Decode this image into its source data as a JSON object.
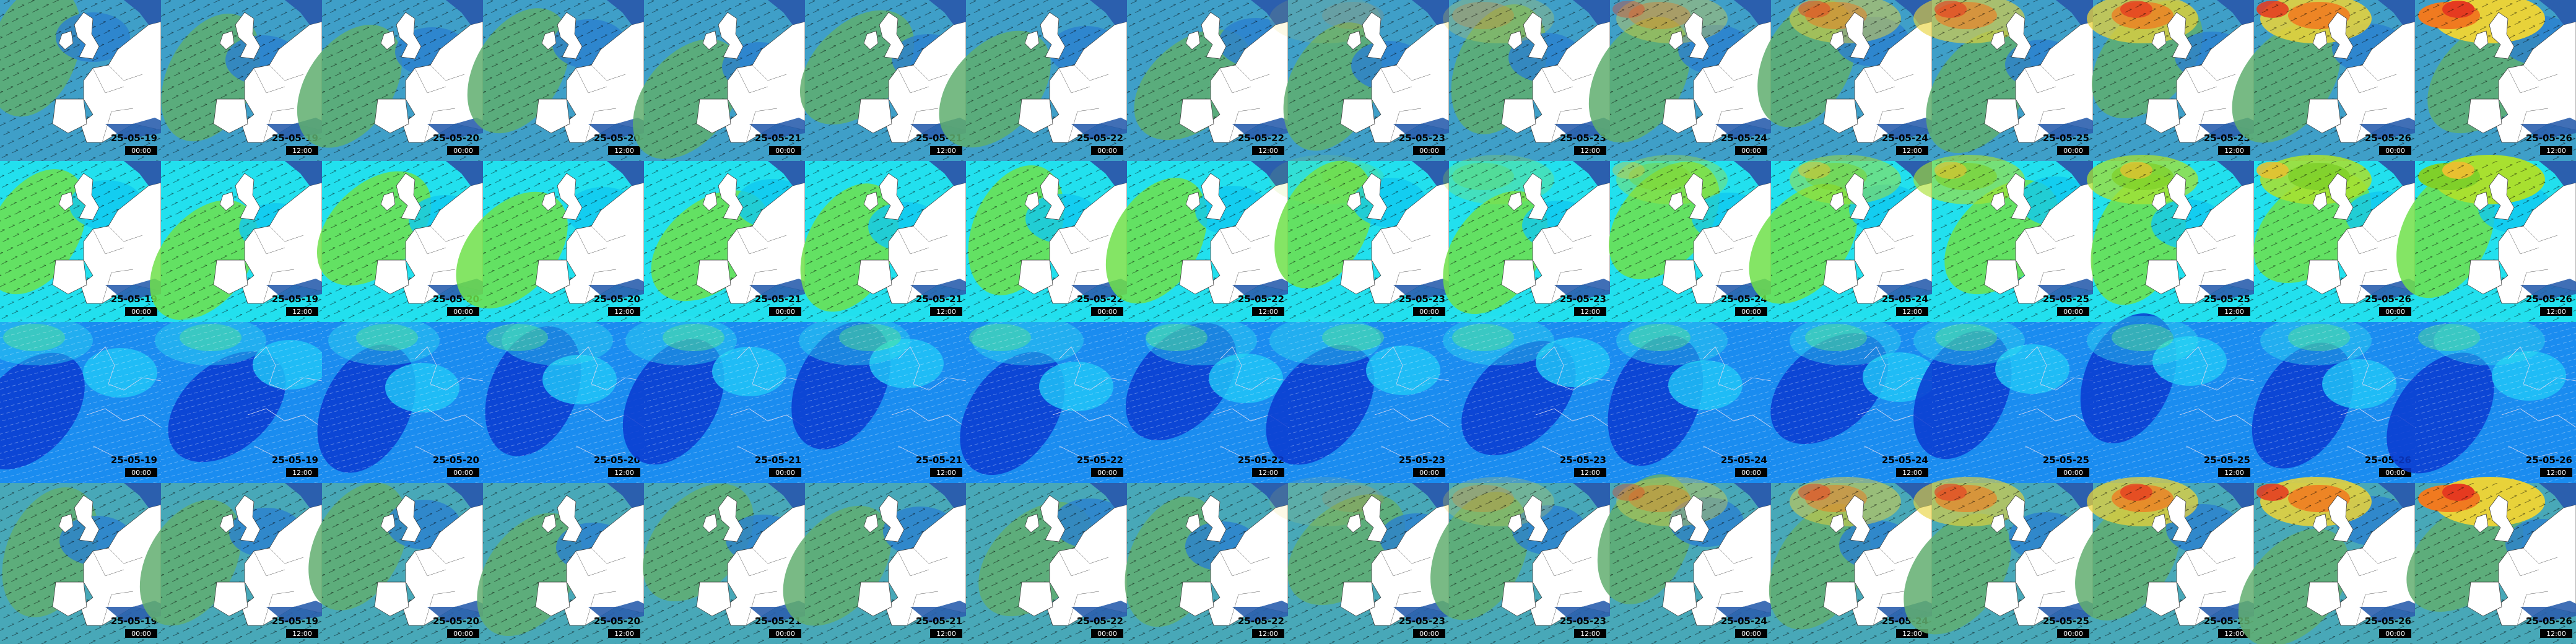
{
  "columns": [
    {
      "date": "25-05-19",
      "time": "00:00"
    },
    {
      "date": "25-05-19",
      "time": "12:00"
    },
    {
      "date": "25-05-20",
      "time": "00:00"
    },
    {
      "date": "25-05-20",
      "time": "12:00"
    },
    {
      "date": "25-05-21",
      "time": "00:00"
    },
    {
      "date": "25-05-21",
      "time": "12:00"
    },
    {
      "date": "25-05-22",
      "time": "00:00"
    },
    {
      "date": "25-05-22",
      "time": "12:00"
    },
    {
      "date": "25-05-23",
      "time": "00:00"
    },
    {
      "date": "25-05-23",
      "time": "12:00"
    },
    {
      "date": "25-05-24",
      "time": "00:00"
    },
    {
      "date": "25-05-24",
      "time": "12:00"
    },
    {
      "date": "25-05-25",
      "time": "00:00"
    },
    {
      "date": "25-05-25",
      "time": "12:00"
    },
    {
      "date": "25-05-26",
      "time": "00:00"
    },
    {
      "date": "25-05-26",
      "time": "12:00"
    }
  ]
}
